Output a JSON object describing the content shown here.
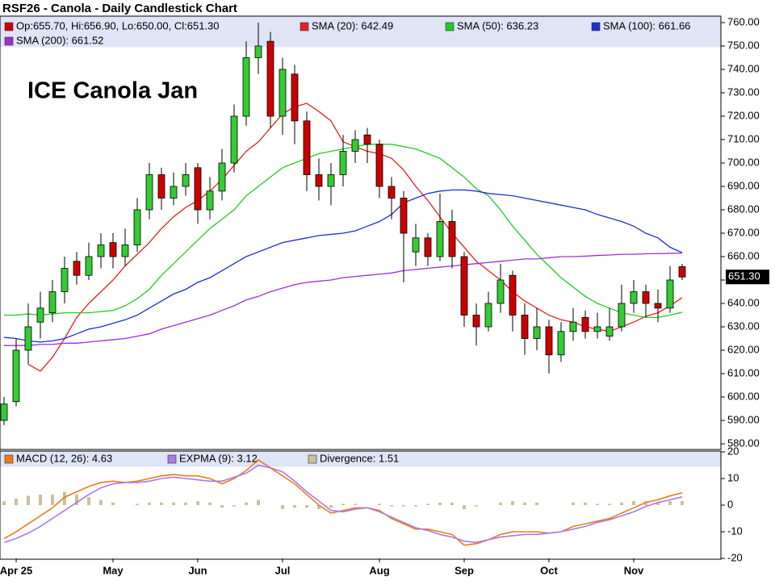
{
  "chart_data": [
    {
      "type": "candlestick",
      "title": "RSF26 - Canola - Daily Candlestick Chart",
      "annotation": "ICE Canola Jan",
      "ohlc_legend": {
        "text": "Op:655.70, Hi:656.90, Lo:650.00, Cl:651.30",
        "color": "#cc0000"
      },
      "up_color": "#33cc33",
      "down_color": "#cc0000",
      "open": [
        590,
        598,
        620,
        632,
        636,
        645,
        658,
        652,
        660,
        666,
        660,
        665,
        680,
        695,
        685,
        690,
        698,
        680,
        688,
        700,
        720,
        745,
        752,
        720,
        738,
        718,
        695,
        690,
        695,
        705,
        712,
        708,
        690,
        685,
        662,
        668,
        660,
        675,
        660,
        635,
        630,
        640,
        652,
        635,
        625,
        630,
        618,
        628,
        634,
        628,
        626,
        630,
        640,
        645,
        640,
        638,
        655.7
      ],
      "high": [
        600,
        625,
        640,
        645,
        650,
        660,
        662,
        666,
        670,
        670,
        672,
        685,
        700,
        698,
        696,
        700,
        700,
        694,
        706,
        725,
        752,
        760,
        756,
        745,
        742,
        722,
        702,
        700,
        712,
        714,
        715,
        710,
        694,
        688,
        674,
        670,
        687,
        680,
        662,
        640,
        645,
        657,
        654,
        640,
        638,
        633,
        632,
        638,
        637,
        636,
        638,
        648,
        650,
        648,
        646,
        656,
        656.9
      ],
      "low": [
        588,
        596,
        614,
        625,
        632,
        640,
        648,
        650,
        655,
        655,
        656,
        662,
        676,
        680,
        682,
        686,
        674,
        676,
        684,
        696,
        716,
        738,
        715,
        712,
        708,
        688,
        684,
        682,
        690,
        700,
        700,
        685,
        676,
        649,
        656,
        656,
        658,
        655,
        630,
        622,
        628,
        636,
        628,
        618,
        620,
        610,
        615,
        624,
        625,
        625,
        624,
        628,
        636,
        634,
        632,
        636,
        650
      ],
      "close": [
        597,
        620,
        630,
        638,
        645,
        655,
        652,
        660,
        665,
        660,
        665,
        680,
        695,
        685,
        690,
        695,
        680,
        688,
        700,
        720,
        745,
        750,
        720,
        740,
        718,
        695,
        690,
        695,
        705,
        710,
        708,
        690,
        685,
        670,
        668,
        660,
        675,
        660,
        635,
        630,
        640,
        650,
        635,
        625,
        630,
        618,
        628,
        632,
        628,
        630,
        630,
        640,
        645,
        640,
        638,
        650,
        651.3
      ],
      "series": [
        {
          "name": "SMA (20): 642.49",
          "color": "#e8201f",
          "values": [
            null,
            null,
            614,
            611,
            617,
            625,
            634,
            640,
            645,
            650,
            656,
            661,
            666,
            672,
            677,
            681,
            684,
            688,
            693,
            699,
            705,
            709,
            715,
            721,
            724,
            725.5,
            722,
            718,
            709,
            707,
            705,
            704,
            702,
            697,
            690,
            684,
            677,
            670,
            664,
            658,
            654,
            650,
            645,
            641,
            638,
            635,
            633,
            632,
            630,
            629,
            628,
            630,
            632,
            634.5,
            636,
            639,
            642.49
          ]
        },
        {
          "name": "SMA (50): 636.23",
          "color": "#22cc22",
          "values": [
            635,
            635,
            635.5,
            635,
            635.5,
            636,
            636,
            636,
            636.5,
            637,
            639,
            642,
            646,
            652,
            657,
            662,
            667,
            672,
            676,
            680,
            686,
            690,
            694,
            698,
            700,
            702,
            704,
            705,
            706,
            707,
            708,
            708,
            708,
            707,
            706,
            704,
            702,
            698,
            694,
            689,
            686,
            680,
            673,
            667,
            661,
            656,
            651,
            647,
            643,
            640,
            638,
            636,
            635,
            634,
            634,
            635,
            636.23
          ]
        },
        {
          "name": "SMA (100): 661.66",
          "color": "#1c2fd0",
          "values": [
            625.5,
            625,
            624,
            623.5,
            624,
            625,
            627,
            629,
            630,
            631.5,
            633,
            635,
            638,
            641,
            644,
            646,
            649,
            651,
            654,
            657,
            660,
            662,
            664,
            666,
            667,
            668,
            669,
            669.5,
            670,
            671,
            673,
            675,
            678,
            683,
            685,
            687,
            688,
            688.5,
            688.5,
            688,
            687,
            686.5,
            686,
            685,
            684,
            683,
            682,
            681,
            680,
            678,
            676.5,
            675,
            673,
            670,
            668,
            664,
            661.66
          ]
        },
        {
          "name": "SMA (200): 661.52",
          "color": "#9b30d9",
          "values": [
            622,
            622,
            622,
            622.5,
            622.5,
            623,
            623,
            623.5,
            624,
            624.5,
            625,
            626,
            627,
            629,
            630.5,
            632,
            633.5,
            635,
            637,
            639,
            641.5,
            643,
            645,
            646.5,
            648,
            649,
            649.5,
            650,
            651,
            651.5,
            652,
            652.5,
            653,
            654,
            654.5,
            655,
            655.5,
            656,
            656.5,
            657,
            657.5,
            658,
            658.5,
            659,
            659,
            659.5,
            660,
            660,
            660.2,
            660.5,
            660.7,
            661,
            661,
            661.2,
            661.3,
            661.4,
            661.52
          ]
        }
      ],
      "last_price": {
        "value": 651.3,
        "label": "651.30"
      },
      "ylim": [
        580,
        760
      ],
      "yticks": [
        {
          "value": 580,
          "label": "580.00"
        },
        {
          "value": 590,
          "label": "590.00"
        },
        {
          "value": 600,
          "label": "600.00"
        },
        {
          "value": 610,
          "label": "610.00"
        },
        {
          "value": 620,
          "label": "620.00"
        },
        {
          "value": 630,
          "label": "630.00"
        },
        {
          "value": 640,
          "label": "640.00"
        },
        {
          "value": 650,
          "label": "650.00"
        },
        {
          "value": 660,
          "label": "660.00"
        },
        {
          "value": 670,
          "label": "670.00"
        },
        {
          "value": 680,
          "label": "680.00"
        },
        {
          "value": 690,
          "label": "690.00"
        },
        {
          "value": 700,
          "label": "700.00"
        },
        {
          "value": 710,
          "label": "710.00"
        },
        {
          "value": 720,
          "label": "720.00"
        },
        {
          "value": 730,
          "label": "730.00"
        },
        {
          "value": 740,
          "label": "740.00"
        },
        {
          "value": 750,
          "label": "750.00"
        },
        {
          "value": 760,
          "label": "760.00"
        }
      ],
      "grid": false
    },
    {
      "type": "macd",
      "categories": [
        null,
        "Apr 25",
        null,
        null,
        null,
        null,
        null,
        null,
        null,
        "May",
        null,
        null,
        null,
        null,
        null,
        null,
        "Jun",
        null,
        null,
        null,
        null,
        null,
        null,
        "Jul",
        null,
        null,
        null,
        null,
        null,
        null,
        null,
        "Aug",
        null,
        null,
        null,
        null,
        null,
        null,
        "Sep",
        null,
        null,
        null,
        null,
        null,
        null,
        "Oct",
        null,
        null,
        null,
        null,
        null,
        null,
        "Nov",
        null,
        null,
        null,
        null
      ],
      "series": [
        {
          "name": "MACD (12, 26): 4.63",
          "color": "#f07a1a",
          "values": [
            -12.6,
            -10,
            -7,
            -4,
            -1,
            3,
            5,
            7,
            8.5,
            9,
            8.5,
            9,
            10,
            11,
            11.5,
            11,
            11,
            10,
            8,
            10,
            13,
            17,
            14,
            11,
            8,
            4,
            0,
            -3,
            -2,
            -1,
            -1,
            -2,
            -5,
            -7,
            -9,
            -9,
            -10,
            -11,
            -15,
            -14.5,
            -13,
            -11,
            -10,
            -10,
            -10,
            -10.5,
            -10,
            -8,
            -7,
            -6,
            -5,
            -3,
            -1,
            1,
            2,
            3.5,
            4.63
          ]
        },
        {
          "name": "EXPMA (9): 3.12",
          "color": "#a77be8",
          "values": [
            -14,
            -12.5,
            -10.5,
            -8,
            -5,
            -2,
            1,
            4,
            6.5,
            8,
            8.5,
            8.5,
            9,
            10,
            10.5,
            10,
            9.5,
            9,
            9,
            10.5,
            12,
            15,
            14,
            12.5,
            9,
            5,
            1.5,
            -2,
            -2.5,
            -1.5,
            -1,
            -2.5,
            -4.5,
            -6.5,
            -8.5,
            -9.5,
            -11,
            -12,
            -13.5,
            -14,
            -13,
            -12,
            -11.5,
            -11,
            -11,
            -10.5,
            -10,
            -9,
            -8,
            -6.5,
            -5.5,
            -4,
            -2.5,
            -0.5,
            1,
            2,
            3.12
          ]
        },
        {
          "name": "Divergence: 1.51",
          "color": "#c9c19a",
          "bar": true,
          "values": [
            1.4,
            2.5,
            3.5,
            4,
            4,
            5,
            4,
            3,
            2,
            1,
            0,
            0.5,
            1,
            1,
            1,
            1,
            1.5,
            1,
            -1,
            -0.5,
            1,
            2,
            0,
            -1.5,
            -1,
            -1,
            -1.5,
            -1,
            0.5,
            0.5,
            0,
            0.5,
            -0.5,
            -0.5,
            -0.5,
            0.5,
            1,
            1,
            -1.5,
            -0.5,
            0,
            1,
            1.5,
            1,
            1,
            0,
            0,
            1,
            1,
            0.5,
            0.5,
            1,
            1.5,
            1.5,
            1,
            1.5,
            1.51
          ]
        }
      ],
      "ylim": [
        -20,
        20
      ],
      "yticks": [
        -20,
        -10,
        0,
        10,
        20
      ],
      "grid": false
    }
  ]
}
